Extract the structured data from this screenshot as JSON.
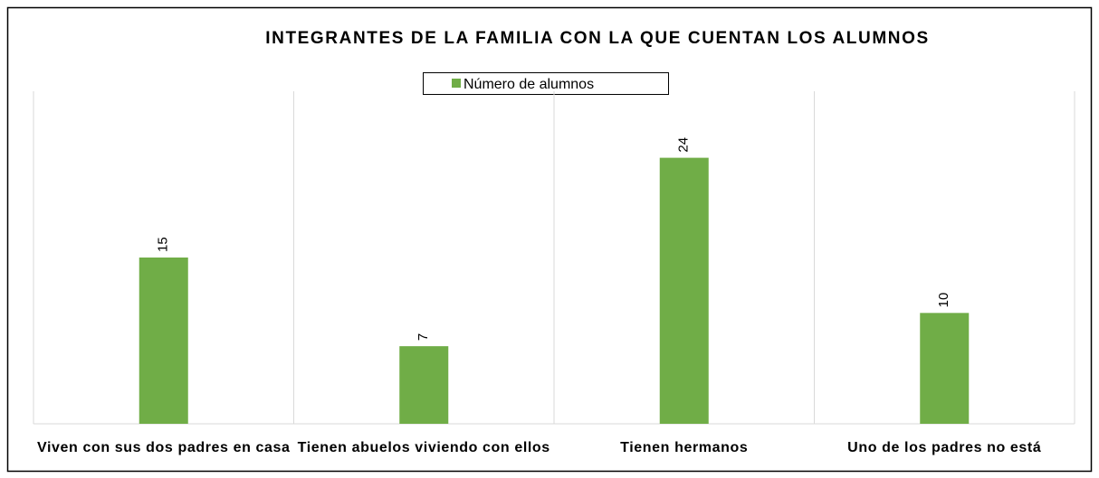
{
  "chart_data": {
    "type": "bar",
    "title": "INTEGRANTES DE LA FAMILIA CON LA QUE CUENTAN LOS ALUMNOS",
    "categories": [
      "Viven con sus dos padres en casa",
      "Tienen abuelos viviendo con ellos",
      "Tienen hermanos",
      "Uno de los padres no está"
    ],
    "series": [
      {
        "name": "Número de alumnos",
        "color": "#70ad47",
        "values": [
          15,
          7,
          24,
          10
        ]
      }
    ],
    "ylim": [
      0,
      30
    ],
    "legend": "top"
  }
}
